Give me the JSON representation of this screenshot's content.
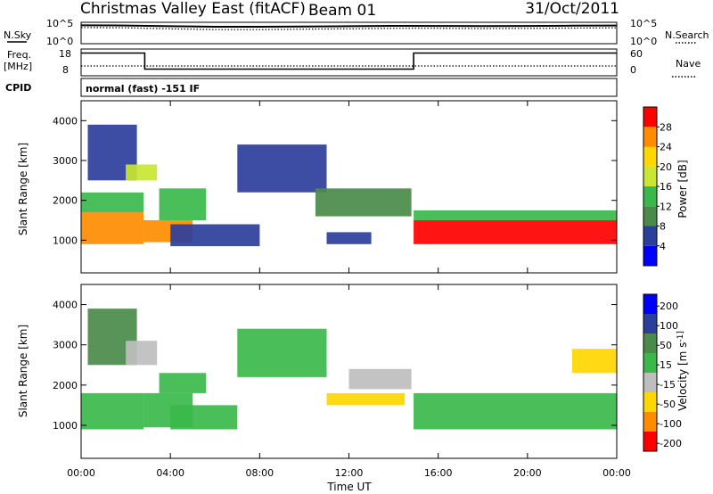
{
  "header": {
    "title": "Christmas Valley East (fitACF)",
    "beam": "Beam 01",
    "date": "31/Oct/2011"
  },
  "noise_panel": {
    "left_label": "N.Sky",
    "right_label": "N.Search",
    "left_ticks": [
      "10^5",
      "10^0"
    ],
    "right_ticks": [
      "10^5",
      "10^0"
    ]
  },
  "freq_panel": {
    "left_label_line1": "Freq.",
    "left_label_line2": "[MHz]",
    "right_label": "Nave",
    "left_ticks": [
      "18",
      "8"
    ],
    "right_ticks": [
      "60",
      "0"
    ]
  },
  "cpid": {
    "label": "CPID",
    "value": "normal (fast) -151 IF"
  },
  "colors": {
    "power": [
      "#0000ff",
      "#2c3e9c",
      "#4a8b4a",
      "#3bb84a",
      "#c8e632",
      "#ffd700",
      "#ff8c00",
      "#ff0000"
    ],
    "velocity": [
      "#0000ff",
      "#2c3e9c",
      "#4a8b4a",
      "#3bb84a",
      "#bebebe",
      "#ffd700",
      "#ff8c00",
      "#ff0000"
    ],
    "axis": "#000000"
  },
  "chart_data": [
    {
      "type": "line",
      "name": "noise",
      "x_unit": "hours UT",
      "y_scale": "log",
      "ylim": [
        1,
        100000
      ],
      "series": [
        {
          "name": "N.Sky",
          "style": "solid",
          "x": [
            0,
            2,
            4,
            6,
            8,
            10,
            12,
            14,
            16,
            18,
            20,
            22,
            24
          ],
          "y": [
            20000,
            18000,
            12000,
            9000,
            9000,
            10000,
            12000,
            15000,
            14000,
            13000,
            14000,
            16000,
            18000
          ]
        },
        {
          "name": "N.Search",
          "style": "dotted",
          "x": [
            0,
            2,
            4,
            6,
            8,
            10,
            12,
            14,
            16,
            18,
            20,
            22,
            24
          ],
          "y": [
            6000,
            5000,
            3000,
            2000,
            2000,
            2500,
            3000,
            4000,
            4000,
            3500,
            3800,
            4500,
            5000
          ]
        }
      ]
    },
    {
      "type": "line",
      "name": "frequency",
      "x_unit": "hours UT",
      "ylim": [
        8,
        18
      ],
      "series": [
        {
          "name": "Freq.",
          "style": "step",
          "x": [
            0,
            2.85,
            2.85,
            14.9,
            14.9,
            24
          ],
          "y": [
            16.5,
            16.5,
            10.5,
            10.5,
            16.5,
            16.5
          ]
        },
        {
          "name": "Nave",
          "style": "dotted",
          "x": [
            0,
            24
          ],
          "y": [
            22,
            22
          ],
          "ylim": [
            0,
            60
          ]
        }
      ]
    },
    {
      "type": "heatmap",
      "title": "",
      "xlabel": "Time UT",
      "ylabel": "Slant Range [km]",
      "xlim": [
        0,
        24
      ],
      "ylim": [
        180,
        4500
      ],
      "x_ticks": [
        "00:00",
        "04:00",
        "08:00",
        "12:00",
        "16:00",
        "20:00",
        "00:00"
      ],
      "y_ticks": [
        "1000",
        "2000",
        "3000",
        "4000"
      ],
      "colorbar": {
        "label": "Power [dB]",
        "ticks": [
          "4",
          "8",
          "12",
          "16",
          "20",
          "24",
          "28"
        ],
        "range": [
          0,
          30
        ]
      },
      "regions": [
        {
          "t": [
            0.0,
            2.8
          ],
          "r": [
            900,
            1700
          ],
          "value": 26
        },
        {
          "t": [
            0.0,
            2.8
          ],
          "r": [
            1700,
            2200
          ],
          "value": 14
        },
        {
          "t": [
            0.3,
            2.5
          ],
          "r": [
            2500,
            3900
          ],
          "value": 7
        },
        {
          "t": [
            2.0,
            3.4
          ],
          "r": [
            2500,
            2900
          ],
          "value": 15
        },
        {
          "t": [
            2.8,
            5.0
          ],
          "r": [
            950,
            1500
          ],
          "value": 24
        },
        {
          "t": [
            3.5,
            5.6
          ],
          "r": [
            1500,
            2300
          ],
          "value": 12
        },
        {
          "t": [
            4.0,
            8.0
          ],
          "r": [
            850,
            1400
          ],
          "value": 6
        },
        {
          "t": [
            7.0,
            11.0
          ],
          "r": [
            2200,
            3400
          ],
          "value": 6
        },
        {
          "t": [
            10.5,
            14.8
          ],
          "r": [
            1600,
            2300
          ],
          "value": 9
        },
        {
          "t": [
            11.0,
            13.0
          ],
          "r": [
            900,
            1200
          ],
          "value": 6
        },
        {
          "t": [
            14.9,
            24.0
          ],
          "r": [
            900,
            1500
          ],
          "value": 27
        },
        {
          "t": [
            14.9,
            24.0
          ],
          "r": [
            1500,
            1750
          ],
          "value": 12
        }
      ]
    },
    {
      "type": "heatmap",
      "title": "",
      "xlabel": "Time UT",
      "ylabel": "Slant Range [km]",
      "xlim": [
        0,
        24
      ],
      "ylim": [
        180,
        4500
      ],
      "x_ticks": [
        "00:00",
        "04:00",
        "08:00",
        "12:00",
        "16:00",
        "20:00",
        "00:00"
      ],
      "y_ticks": [
        "1000",
        "2000",
        "3000",
        "4000"
      ],
      "colorbar": {
        "label": "Velocity [m s^-1]",
        "ticks": [
          "200",
          "100",
          "50",
          "15",
          "-15",
          "-50",
          "-100",
          "-200"
        ],
        "range": [
          -250,
          250
        ]
      },
      "regions": [
        {
          "t": [
            0.0,
            2.8
          ],
          "r": [
            900,
            1800
          ],
          "value": 0
        },
        {
          "t": [
            0.3,
            2.5
          ],
          "r": [
            2500,
            3900
          ],
          "value": 120
        },
        {
          "t": [
            2.0,
            3.4
          ],
          "r": [
            2500,
            3100
          ],
          "value": -60
        },
        {
          "t": [
            2.8,
            5.0
          ],
          "r": [
            950,
            1800
          ],
          "value": 0
        },
        {
          "t": [
            3.5,
            5.6
          ],
          "r": [
            1800,
            2300
          ],
          "value": 40
        },
        {
          "t": [
            4.0,
            7.0
          ],
          "r": [
            900,
            1500
          ],
          "value": 40
        },
        {
          "t": [
            7.0,
            11.0
          ],
          "r": [
            2200,
            3400
          ],
          "value": 0
        },
        {
          "t": [
            11.0,
            14.5
          ],
          "r": [
            1500,
            1800
          ],
          "value": -70
        },
        {
          "t": [
            12.0,
            14.8
          ],
          "r": [
            1900,
            2400
          ],
          "value": -55
        },
        {
          "t": [
            14.9,
            24.0
          ],
          "r": [
            900,
            1800
          ],
          "value": 0
        },
        {
          "t": [
            22.0,
            24.0
          ],
          "r": [
            2300,
            2900
          ],
          "value": -120
        }
      ]
    }
  ]
}
